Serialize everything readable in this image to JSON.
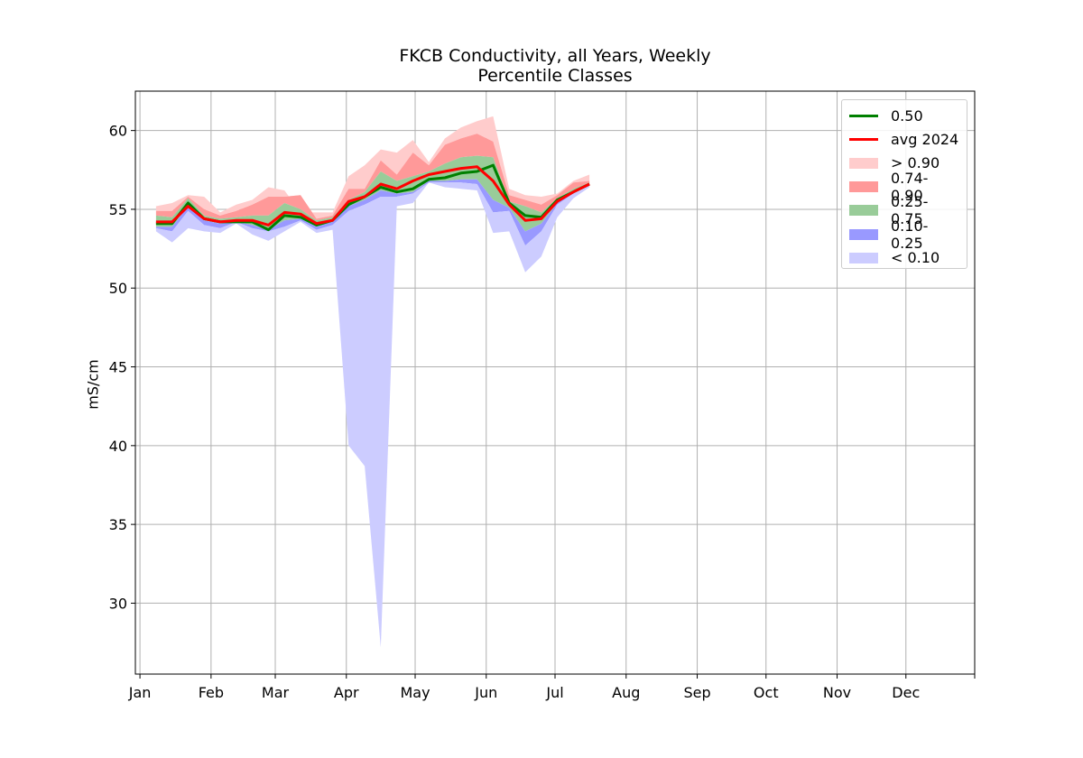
{
  "chart_data": {
    "type": "area",
    "title": "FKCB Conductivity, all Years, Weekly",
    "subtitle": "Percentile Classes",
    "xlabel": "",
    "ylabel": "mS/cm",
    "x_unit": "day of year",
    "xlim": [
      -2,
      364
    ],
    "ylim": [
      25.5,
      62.5
    ],
    "x_ticks": [
      {
        "label": "Jan",
        "x": 0
      },
      {
        "label": "Feb",
        "x": 31
      },
      {
        "label": "Mar",
        "x": 59
      },
      {
        "label": "Apr",
        "x": 90
      },
      {
        "label": "May",
        "x": 120
      },
      {
        "label": "Jun",
        "x": 151
      },
      {
        "label": "Jul",
        "x": 181
      },
      {
        "label": "Aug",
        "x": 212
      },
      {
        "label": "Sep",
        "x": 243
      },
      {
        "label": "Oct",
        "x": 273
      },
      {
        "label": "Nov",
        "x": 304
      },
      {
        "label": "Dec",
        "x": 334
      }
    ],
    "y_ticks": [
      30,
      35,
      40,
      45,
      50,
      55,
      60
    ],
    "grid": true,
    "legend_position": "top-right",
    "x": [
      7,
      14,
      21,
      28,
      35,
      42,
      49,
      56,
      63,
      70,
      77,
      84,
      91,
      98,
      105,
      112,
      119,
      126,
      133,
      140,
      147,
      154,
      161,
      168,
      175,
      182,
      189,
      196
    ],
    "percentiles": {
      "p0": [
        53.6,
        52.9,
        53.8,
        53.6,
        53.5,
        54.1,
        53.4,
        53.0,
        53.6,
        54.2,
        53.5,
        53.7,
        40.0,
        38.7,
        27.2,
        55.2,
        55.4,
        56.7,
        56.4,
        56.3,
        56.2,
        53.5,
        53.6,
        51.0,
        52.0,
        54.5,
        55.7,
        56.4
      ],
      "p10": [
        53.8,
        53.6,
        54.9,
        54.0,
        53.8,
        54.2,
        53.8,
        53.6,
        53.9,
        54.3,
        53.7,
        54.0,
        54.9,
        55.3,
        55.8,
        55.8,
        56.0,
        56.7,
        56.7,
        56.7,
        56.6,
        54.8,
        54.9,
        52.7,
        53.6,
        55.3,
        56.0,
        56.5
      ],
      "p25": [
        53.9,
        53.9,
        55.2,
        54.3,
        54.1,
        54.2,
        54.0,
        53.7,
        54.3,
        54.4,
        53.9,
        54.2,
        55.2,
        55.6,
        56.2,
        56.0,
        56.1,
        56.8,
        56.8,
        56.9,
        56.9,
        55.6,
        55.1,
        53.6,
        54.1,
        55.4,
        56.1,
        56.6
      ],
      "p50": [
        54.1,
        54.1,
        55.4,
        54.4,
        54.2,
        54.2,
        54.2,
        53.7,
        54.6,
        54.5,
        54.0,
        54.3,
        55.3,
        55.8,
        56.4,
        56.1,
        56.3,
        56.9,
        57.0,
        57.3,
        57.4,
        57.8,
        55.4,
        54.6,
        54.5,
        55.6,
        56.1,
        56.6
      ],
      "p75": [
        54.6,
        54.5,
        55.7,
        54.6,
        54.4,
        54.5,
        54.6,
        54.6,
        55.4,
        55.0,
        54.3,
        54.5,
        55.6,
        56.1,
        57.4,
        56.8,
        57.1,
        57.4,
        57.9,
        58.3,
        58.4,
        58.3,
        55.5,
        55.2,
        54.8,
        55.7,
        56.3,
        56.7
      ],
      "p90": [
        54.9,
        54.9,
        55.8,
        55.0,
        54.6,
        54.9,
        55.3,
        55.8,
        55.8,
        55.9,
        54.4,
        54.6,
        56.3,
        56.3,
        58.1,
        57.2,
        58.6,
        57.8,
        59.1,
        59.5,
        59.8,
        59.3,
        55.9,
        55.6,
        55.3,
        55.9,
        56.7,
        56.8
      ],
      "p100": [
        55.2,
        55.4,
        55.9,
        55.8,
        54.8,
        55.3,
        55.6,
        56.4,
        56.2,
        54.8,
        54.8,
        54.8,
        57.1,
        57.8,
        58.8,
        58.6,
        59.4,
        58.0,
        59.5,
        60.2,
        60.6,
        60.9,
        56.3,
        55.9,
        55.8,
        56.0,
        56.8,
        57.2
      ]
    },
    "series": [
      {
        "name": "0.50",
        "color": "#008000",
        "values": [
          54.1,
          54.1,
          55.4,
          54.4,
          54.2,
          54.2,
          54.2,
          53.7,
          54.6,
          54.5,
          54.0,
          54.3,
          55.3,
          55.8,
          56.4,
          56.1,
          56.3,
          56.9,
          57.0,
          57.3,
          57.4,
          57.8,
          55.4,
          54.6,
          54.5,
          55.6,
          56.1,
          56.6
        ]
      },
      {
        "name": "avg 2024",
        "color": "#ff0000",
        "values": [
          54.2,
          54.2,
          55.2,
          54.4,
          54.2,
          54.3,
          54.3,
          54.0,
          54.8,
          54.7,
          54.1,
          54.3,
          55.5,
          55.8,
          56.6,
          56.3,
          56.8,
          57.2,
          57.4,
          57.6,
          57.7,
          56.8,
          55.3,
          54.3,
          54.4,
          55.5,
          56.1,
          56.6
        ]
      }
    ],
    "bands": [
      {
        "name": "> 0.90",
        "lower": "p90",
        "upper": "p100",
        "color": "#ffcccc"
      },
      {
        "name": "0.74-0.90",
        "lower": "p75",
        "upper": "p90",
        "color": "#ff9999"
      },
      {
        "name": "0.25-0.75",
        "lower": "p25",
        "upper": "p75",
        "color": "#99cc99"
      },
      {
        "name": "0.10-0.25",
        "lower": "p10",
        "upper": "p25",
        "color": "#9999ff"
      },
      {
        "name": "< 0.10",
        "lower": "p0",
        "upper": "p10",
        "color": "#ccccff"
      }
    ],
    "legend": [
      {
        "label": "0.50",
        "color": "#008000",
        "kind": "line"
      },
      {
        "label": "avg 2024",
        "color": "#ff0000",
        "kind": "line"
      },
      {
        "label": "> 0.90",
        "color": "#ffcccc",
        "kind": "patch"
      },
      {
        "label": "0.74-0.90",
        "color": "#ff9999",
        "kind": "patch"
      },
      {
        "label": "0.25-0.75",
        "color": "#99cc99",
        "kind": "patch"
      },
      {
        "label": "0.10-0.25",
        "color": "#9999ff",
        "kind": "patch"
      },
      {
        "label": "< 0.10",
        "color": "#ccccff",
        "kind": "patch"
      }
    ]
  }
}
